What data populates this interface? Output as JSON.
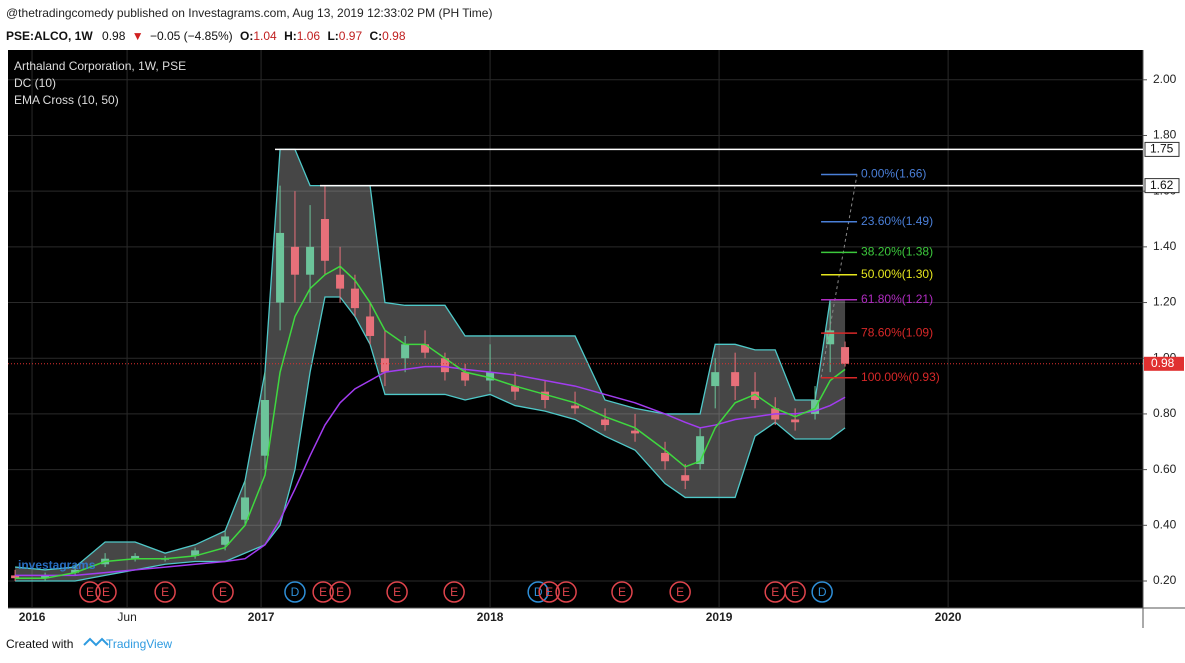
{
  "header": {
    "publisher": "@thetradingcomedy published on Investagrams.com, Aug 13, 2019 12:33:02 PM (PH Time)",
    "symbol": "PSE:ALCO, 1W",
    "price": "0.98",
    "arrow": "▼",
    "change": "−0.05 (−4.85%)",
    "ohlc": [
      {
        "label": "O:",
        "value": "1.04"
      },
      {
        "label": "H:",
        "value": "1.06"
      },
      {
        "label": "L:",
        "value": "0.97"
      },
      {
        "label": "C:",
        "value": "0.98"
      }
    ]
  },
  "chart_data": {
    "type": "candlestick",
    "legend": [
      "Arthaland Corporation, 1W, PSE",
      "DC (10)",
      "EMA Cross (10, 50)"
    ],
    "watermark": "investagrams",
    "x": [
      2015.926,
      2016.057,
      2016.188,
      2016.319,
      2016.45,
      2016.581,
      2016.712,
      2016.843,
      2016.93,
      2017.017,
      2017.083,
      2017.148,
      2017.214,
      2017.279,
      2017.345,
      2017.41,
      2017.476,
      2017.541,
      2017.629,
      2017.716,
      2017.803,
      2017.891,
      2018.0,
      2018.109,
      2018.24,
      2018.371,
      2018.502,
      2018.633,
      2018.764,
      2018.852,
      2018.917,
      2018.983,
      2019.07,
      2019.157,
      2019.245,
      2019.332,
      2019.419,
      2019.485,
      2019.55
    ],
    "open": [
      0.22,
      0.21,
      0.23,
      0.26,
      0.28,
      0.28,
      0.29,
      0.33,
      0.42,
      0.65,
      1.2,
      1.4,
      1.3,
      1.5,
      1.3,
      1.25,
      1.15,
      1.0,
      1.0,
      1.05,
      1.0,
      0.95,
      0.92,
      0.9,
      0.88,
      0.83,
      0.78,
      0.74,
      0.66,
      0.58,
      0.62,
      0.9,
      0.95,
      0.88,
      0.82,
      0.78,
      0.8,
      1.05,
      1.04
    ],
    "high": [
      0.24,
      0.23,
      0.26,
      0.3,
      0.3,
      0.29,
      0.32,
      0.38,
      0.56,
      0.95,
      1.62,
      1.6,
      1.55,
      1.62,
      1.4,
      1.3,
      1.2,
      1.1,
      1.08,
      1.1,
      1.02,
      0.98,
      1.05,
      0.95,
      0.92,
      0.88,
      0.82,
      0.8,
      0.7,
      0.62,
      0.75,
      1.0,
      1.02,
      0.95,
      0.86,
      0.82,
      0.9,
      1.2,
      1.06
    ],
    "low": [
      0.2,
      0.2,
      0.22,
      0.25,
      0.27,
      0.27,
      0.28,
      0.31,
      0.4,
      0.6,
      1.1,
      1.2,
      1.2,
      1.3,
      1.2,
      1.15,
      1.05,
      0.9,
      0.95,
      1.0,
      0.92,
      0.9,
      0.88,
      0.85,
      0.82,
      0.8,
      0.74,
      0.7,
      0.6,
      0.53,
      0.6,
      0.82,
      0.85,
      0.82,
      0.76,
      0.74,
      0.78,
      0.95,
      0.97
    ],
    "close": [
      0.21,
      0.22,
      0.24,
      0.28,
      0.29,
      0.28,
      0.31,
      0.36,
      0.5,
      0.85,
      1.45,
      1.3,
      1.4,
      1.35,
      1.25,
      1.18,
      1.08,
      0.95,
      1.05,
      1.02,
      0.95,
      0.92,
      0.95,
      0.88,
      0.85,
      0.82,
      0.76,
      0.73,
      0.63,
      0.56,
      0.72,
      0.95,
      0.9,
      0.85,
      0.78,
      0.77,
      0.85,
      1.1,
      0.98
    ],
    "ema_fast": [
      0.21,
      0.21,
      0.23,
      0.27,
      0.28,
      0.28,
      0.29,
      0.32,
      0.4,
      0.58,
      0.95,
      1.15,
      1.25,
      1.3,
      1.33,
      1.28,
      1.2,
      1.1,
      1.05,
      1.05,
      1.0,
      0.95,
      0.93,
      0.9,
      0.87,
      0.84,
      0.79,
      0.75,
      0.67,
      0.61,
      0.63,
      0.75,
      0.84,
      0.87,
      0.82,
      0.79,
      0.82,
      0.92,
      0.96
    ],
    "ema_slow": [
      0.22,
      0.22,
      0.22,
      0.23,
      0.24,
      0.25,
      0.26,
      0.27,
      0.28,
      0.33,
      0.42,
      0.53,
      0.65,
      0.76,
      0.84,
      0.89,
      0.92,
      0.95,
      0.96,
      0.97,
      0.97,
      0.96,
      0.95,
      0.94,
      0.92,
      0.9,
      0.87,
      0.84,
      0.8,
      0.77,
      0.75,
      0.76,
      0.78,
      0.79,
      0.8,
      0.8,
      0.81,
      0.83,
      0.86
    ],
    "dc_upper": [
      0.25,
      0.24,
      0.25,
      0.34,
      0.34,
      0.3,
      0.33,
      0.38,
      0.56,
      0.95,
      1.75,
      1.75,
      1.62,
      1.62,
      1.62,
      1.62,
      1.62,
      1.2,
      1.19,
      1.19,
      1.19,
      1.08,
      1.08,
      1.08,
      1.08,
      1.08,
      0.85,
      0.82,
      0.8,
      0.8,
      0.8,
      1.05,
      1.05,
      1.03,
      1.03,
      0.85,
      0.85,
      1.21,
      1.21
    ],
    "dc_lower": [
      0.2,
      0.2,
      0.2,
      0.22,
      0.24,
      0.26,
      0.27,
      0.27,
      0.3,
      0.33,
      0.4,
      0.6,
      0.95,
      1.22,
      1.22,
      1.15,
      1.05,
      0.87,
      0.87,
      0.87,
      0.87,
      0.85,
      0.87,
      0.83,
      0.81,
      0.78,
      0.72,
      0.67,
      0.55,
      0.5,
      0.5,
      0.5,
      0.5,
      0.72,
      0.77,
      0.71,
      0.71,
      0.71,
      0.75
    ],
    "colors": {
      "up": "#6cc49a",
      "down": "#e8707a",
      "ema_fast": "#3fd83f",
      "ema_slow": "#a23cf0",
      "dc_line": "#4fc8c8",
      "dc_fill": "rgba(200,200,200,0.35)"
    },
    "levels": [
      1.75,
      1.62
    ],
    "last_price": 0.98,
    "fib": [
      {
        "value": 1.66,
        "label": "0.00%(1.66)",
        "color": "#4a7fd8"
      },
      {
        "value": 1.49,
        "label": "23.60%(1.49)",
        "color": "#4a7fd8"
      },
      {
        "value": 1.38,
        "label": "38.20%(1.38)",
        "color": "#3cc83c"
      },
      {
        "value": 1.3,
        "label": "50.00%(1.30)",
        "color": "#e6e61e"
      },
      {
        "value": 1.21,
        "label": "61.80%(1.21)",
        "color": "#b02cc0"
      },
      {
        "value": 1.09,
        "label": "78.60%(1.09)",
        "color": "#d82828"
      },
      {
        "value": 0.93,
        "label": "100.00%(0.93)",
        "color": "#d82828"
      }
    ],
    "events": [
      {
        "x": 2016.253,
        "label": "E"
      },
      {
        "x": 2016.323,
        "label": "E"
      },
      {
        "x": 2016.581,
        "label": "E"
      },
      {
        "x": 2016.834,
        "label": "E"
      },
      {
        "x": 2017.148,
        "label": "D"
      },
      {
        "x": 2017.271,
        "label": "E"
      },
      {
        "x": 2017.345,
        "label": "E"
      },
      {
        "x": 2017.594,
        "label": "E"
      },
      {
        "x": 2017.843,
        "label": "E"
      },
      {
        "x": 2018.21,
        "label": "D"
      },
      {
        "x": 2018.258,
        "label": "E"
      },
      {
        "x": 2018.332,
        "label": "E"
      },
      {
        "x": 2018.576,
        "label": "E"
      },
      {
        "x": 2018.83,
        "label": "E"
      },
      {
        "x": 2019.245,
        "label": "E"
      },
      {
        "x": 2019.332,
        "label": "E"
      },
      {
        "x": 2019.45,
        "label": "D"
      }
    ],
    "xlim": [
      2015.895,
      2020.851
    ],
    "xticks": [
      {
        "value": 2016,
        "label": "2016"
      },
      {
        "value": 2016.415,
        "label": "Jun"
      },
      {
        "value": 2017,
        "label": "2017"
      },
      {
        "value": 2018,
        "label": "2018"
      },
      {
        "value": 2019,
        "label": "2019"
      },
      {
        "value": 2020,
        "label": "2020"
      }
    ],
    "ylim": [
      0.103,
      2.107
    ],
    "yticks": [
      {
        "value": 0.2,
        "label": "0.20"
      },
      {
        "value": 0.4,
        "label": "0.40"
      },
      {
        "value": 0.6,
        "label": "0.60"
      },
      {
        "value": 0.8,
        "label": "0.80"
      },
      {
        "value": 1.0,
        "label": "1.00"
      },
      {
        "value": 1.2,
        "label": "1.20"
      },
      {
        "value": 1.4,
        "label": "1.40"
      },
      {
        "value": 1.6,
        "label": "1.60"
      },
      {
        "value": 1.8,
        "label": "1.80"
      },
      {
        "value": 2.0,
        "label": "2.00"
      }
    ],
    "grid": true
  },
  "footer": {
    "created": "Created with",
    "brand": "TradingView"
  }
}
